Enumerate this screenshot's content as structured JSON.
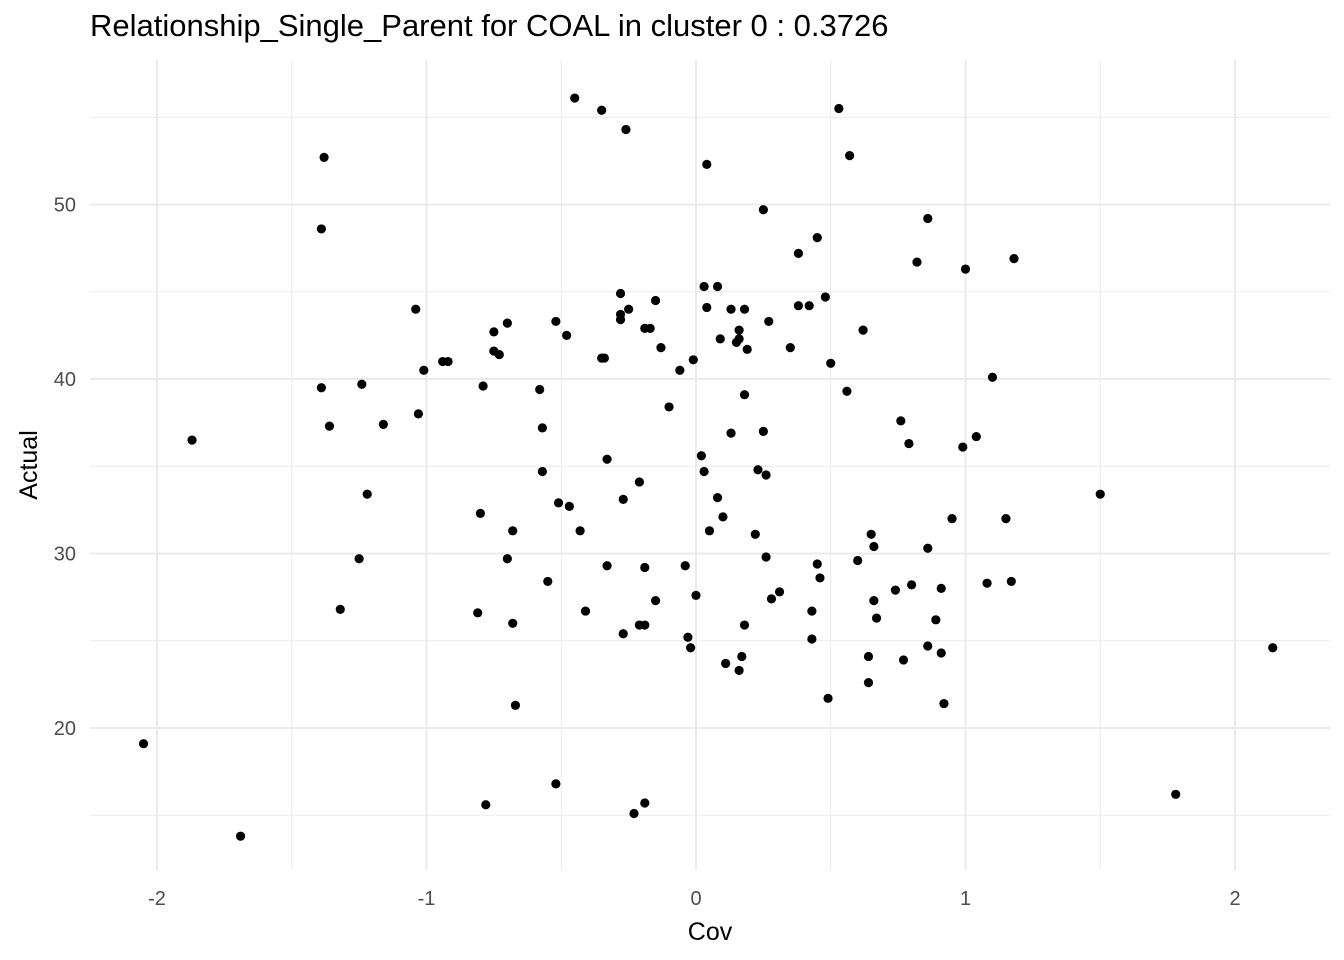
{
  "chart_data": {
    "type": "scatter",
    "title": "Relationship_Single_Parent for COAL in cluster 0 : 0.3726",
    "xlabel": "Cov",
    "ylabel": "Actual",
    "xlim": [
      -2.2,
      2.3
    ],
    "ylim": [
      12.5,
      57.5
    ],
    "x_ticks": [
      -2,
      -1,
      0,
      1,
      2
    ],
    "y_ticks": [
      20,
      30,
      40,
      50
    ],
    "grid": true,
    "point_color": "#000000",
    "points": [
      [
        -2.05,
        19.1
      ],
      [
        -1.87,
        36.5
      ],
      [
        -1.69,
        13.8
      ],
      [
        -1.38,
        52.7
      ],
      [
        -1.39,
        48.6
      ],
      [
        -1.39,
        39.5
      ],
      [
        -1.36,
        37.3
      ],
      [
        -1.32,
        26.8
      ],
      [
        -1.25,
        29.7
      ],
      [
        -1.24,
        39.7
      ],
      [
        -1.22,
        33.4
      ],
      [
        -1.16,
        37.4
      ],
      [
        -1.04,
        44.0
      ],
      [
        -1.03,
        38.0
      ],
      [
        -1.01,
        40.5
      ],
      [
        -0.94,
        41.0
      ],
      [
        -0.92,
        41.0
      ],
      [
        -0.8,
        32.3
      ],
      [
        -0.81,
        26.6
      ],
      [
        -0.79,
        39.6
      ],
      [
        -0.78,
        15.6
      ],
      [
        -0.75,
        42.7
      ],
      [
        -0.75,
        41.6
      ],
      [
        -0.73,
        41.4
      ],
      [
        -0.7,
        43.2
      ],
      [
        -0.7,
        29.7
      ],
      [
        -0.68,
        31.3
      ],
      [
        -0.68,
        26.0
      ],
      [
        -0.67,
        21.3
      ],
      [
        -0.58,
        39.4
      ],
      [
        -0.57,
        37.2
      ],
      [
        -0.57,
        34.7
      ],
      [
        -0.55,
        28.4
      ],
      [
        -0.52,
        43.3
      ],
      [
        -0.52,
        16.8
      ],
      [
        -0.51,
        32.9
      ],
      [
        -0.48,
        42.5
      ],
      [
        -0.47,
        32.7
      ],
      [
        -0.45,
        56.1
      ],
      [
        -0.43,
        31.3
      ],
      [
        -0.41,
        26.7
      ],
      [
        -0.35,
        55.4
      ],
      [
        -0.35,
        41.2
      ],
      [
        -0.34,
        41.2
      ],
      [
        -0.33,
        35.4
      ],
      [
        -0.33,
        29.3
      ],
      [
        -0.28,
        44.9
      ],
      [
        -0.28,
        43.7
      ],
      [
        -0.28,
        43.4
      ],
      [
        -0.27,
        33.1
      ],
      [
        -0.27,
        25.4
      ],
      [
        -0.26,
        54.3
      ],
      [
        -0.25,
        44.0
      ],
      [
        -0.23,
        15.1
      ],
      [
        -0.21,
        25.9
      ],
      [
        -0.21,
        34.1
      ],
      [
        -0.19,
        42.9
      ],
      [
        -0.19,
        29.2
      ],
      [
        -0.19,
        25.9
      ],
      [
        -0.19,
        15.7
      ],
      [
        -0.17,
        42.9
      ],
      [
        -0.15,
        44.5
      ],
      [
        -0.15,
        27.3
      ],
      [
        -0.13,
        41.8
      ],
      [
        -0.1,
        38.4
      ],
      [
        -0.06,
        40.5
      ],
      [
        -0.04,
        29.3
      ],
      [
        -0.03,
        25.2
      ],
      [
        -0.02,
        24.6
      ],
      [
        -0.01,
        41.1
      ],
      [
        0.0,
        27.6
      ],
      [
        0.02,
        35.6
      ],
      [
        0.03,
        45.3
      ],
      [
        0.04,
        52.3
      ],
      [
        0.04,
        44.1
      ],
      [
        0.03,
        34.7
      ],
      [
        0.05,
        31.3
      ],
      [
        0.08,
        45.3
      ],
      [
        0.08,
        33.2
      ],
      [
        0.09,
        42.3
      ],
      [
        0.1,
        32.1
      ],
      [
        0.11,
        23.7
      ],
      [
        0.13,
        44.0
      ],
      [
        0.13,
        36.9
      ],
      [
        0.15,
        42.1
      ],
      [
        0.16,
        42.3
      ],
      [
        0.16,
        42.8
      ],
      [
        0.16,
        23.3
      ],
      [
        0.17,
        24.1
      ],
      [
        0.18,
        44.0
      ],
      [
        0.18,
        39.1
      ],
      [
        0.18,
        25.9
      ],
      [
        0.19,
        41.7
      ],
      [
        0.22,
        31.1
      ],
      [
        0.23,
        34.8
      ],
      [
        0.25,
        49.7
      ],
      [
        0.25,
        37.0
      ],
      [
        0.26,
        34.5
      ],
      [
        0.26,
        29.8
      ],
      [
        0.27,
        43.3
      ],
      [
        0.28,
        27.4
      ],
      [
        0.31,
        27.8
      ],
      [
        0.35,
        41.8
      ],
      [
        0.38,
        47.2
      ],
      [
        0.38,
        44.2
      ],
      [
        0.42,
        44.2
      ],
      [
        0.43,
        26.7
      ],
      [
        0.43,
        25.1
      ],
      [
        0.45,
        48.1
      ],
      [
        0.45,
        29.4
      ],
      [
        0.46,
        28.6
      ],
      [
        0.48,
        44.7
      ],
      [
        0.49,
        21.7
      ],
      [
        0.5,
        40.9
      ],
      [
        0.53,
        55.5
      ],
      [
        0.56,
        39.3
      ],
      [
        0.57,
        52.8
      ],
      [
        0.6,
        29.6
      ],
      [
        0.62,
        42.8
      ],
      [
        0.64,
        24.1
      ],
      [
        0.64,
        22.6
      ],
      [
        0.65,
        31.1
      ],
      [
        0.66,
        30.4
      ],
      [
        0.66,
        27.3
      ],
      [
        0.67,
        26.3
      ],
      [
        0.74,
        27.9
      ],
      [
        0.76,
        37.6
      ],
      [
        0.77,
        23.9
      ],
      [
        0.79,
        36.3
      ],
      [
        0.8,
        28.2
      ],
      [
        0.82,
        46.7
      ],
      [
        0.86,
        49.2
      ],
      [
        0.86,
        30.3
      ],
      [
        0.86,
        24.7
      ],
      [
        0.89,
        26.2
      ],
      [
        0.91,
        28.0
      ],
      [
        0.91,
        24.3
      ],
      [
        0.92,
        21.4
      ],
      [
        0.95,
        32.0
      ],
      [
        0.99,
        36.1
      ],
      [
        1.0,
        46.3
      ],
      [
        1.04,
        36.7
      ],
      [
        1.08,
        28.3
      ],
      [
        1.1,
        40.1
      ],
      [
        1.15,
        32.0
      ],
      [
        1.17,
        28.4
      ],
      [
        1.18,
        46.9
      ],
      [
        1.5,
        33.4
      ],
      [
        1.78,
        16.2
      ],
      [
        2.14,
        24.6
      ]
    ]
  }
}
